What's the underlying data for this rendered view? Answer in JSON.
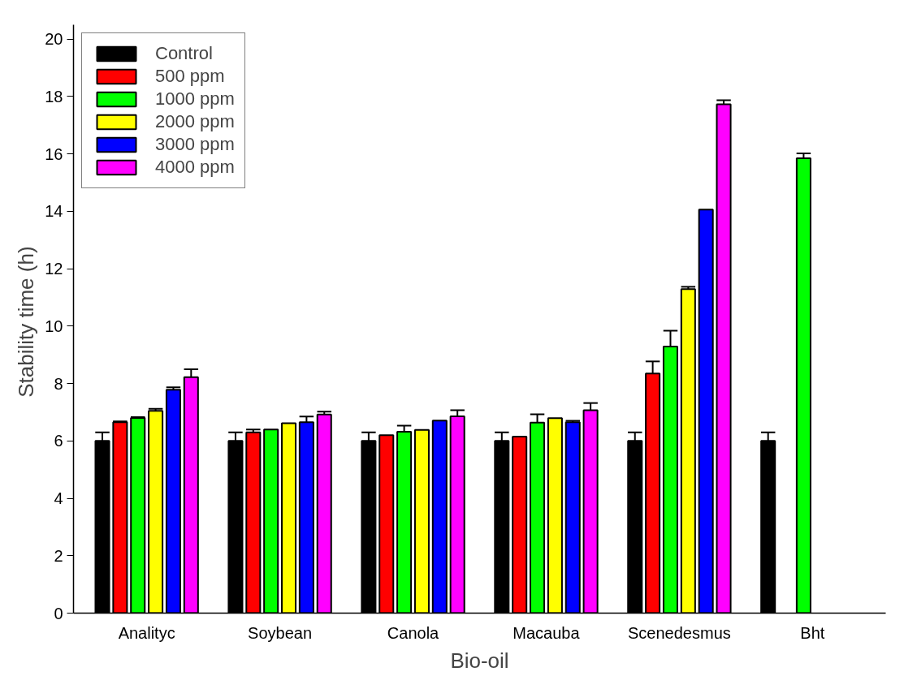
{
  "chart_data": {
    "type": "bar",
    "xlabel": "Bio-oil",
    "ylabel": "Stability  time (h)",
    "categories": [
      "Analityc",
      "Soybean",
      "Canola",
      "Macauba",
      "Scenedesmus",
      "Bht"
    ],
    "ylim": [
      0,
      20.5
    ],
    "yticks": [
      0,
      2,
      4,
      6,
      8,
      10,
      12,
      14,
      16,
      18,
      20
    ],
    "grid": false,
    "legend": "top left",
    "series": [
      {
        "name": "Control",
        "color": "#000000",
        "values": [
          6.0,
          6.0,
          6.0,
          6.0,
          6.0,
          6.0
        ],
        "errors": [
          [
            6.0,
            6.3
          ],
          [
            6.0,
            6.3
          ],
          [
            6.0,
            6.3
          ],
          [
            6.0,
            6.3
          ],
          [
            6.0,
            6.3
          ],
          [
            6.0,
            6.3
          ]
        ]
      },
      {
        "name": "500 ppm",
        "color": "#ff0000",
        "values": [
          6.65,
          6.3,
          6.2,
          6.15,
          8.35,
          null
        ],
        "errors": [
          [
            6.65,
            6.68
          ],
          [
            6.3,
            6.4
          ],
          null,
          null,
          [
            8.35,
            8.77
          ],
          null
        ]
      },
      {
        "name": "1000 ppm",
        "color": "#00ff00",
        "values": [
          6.8,
          6.4,
          6.32,
          6.64,
          9.29,
          15.85
        ],
        "errors": [
          [
            6.8,
            6.83
          ],
          null,
          [
            6.32,
            6.53
          ],
          [
            6.64,
            6.93
          ],
          [
            9.29,
            9.84
          ],
          [
            15.85,
            16.02
          ]
        ]
      },
      {
        "name": "2000 ppm",
        "color": "#ffff00",
        "values": [
          7.05,
          6.62,
          6.38,
          6.79,
          11.29,
          null
        ],
        "errors": [
          [
            7.05,
            7.12
          ],
          null,
          null,
          null,
          [
            11.29,
            11.37
          ],
          null
        ]
      },
      {
        "name": "3000 ppm",
        "color": "#0000ff",
        "values": [
          7.78,
          6.65,
          6.71,
          6.65,
          14.06,
          null
        ],
        "errors": [
          [
            7.78,
            7.87
          ],
          [
            6.65,
            6.85
          ],
          null,
          [
            6.65,
            6.7
          ],
          null,
          null
        ]
      },
      {
        "name": "4000 ppm",
        "color": "#ff00ff",
        "values": [
          8.22,
          6.92,
          6.86,
          7.07,
          17.73,
          null
        ],
        "errors": [
          [
            8.22,
            8.5
          ],
          [
            6.92,
            7.02
          ],
          [
            6.86,
            7.07
          ],
          [
            7.07,
            7.32
          ],
          [
            17.73,
            17.87
          ],
          null
        ]
      }
    ]
  }
}
